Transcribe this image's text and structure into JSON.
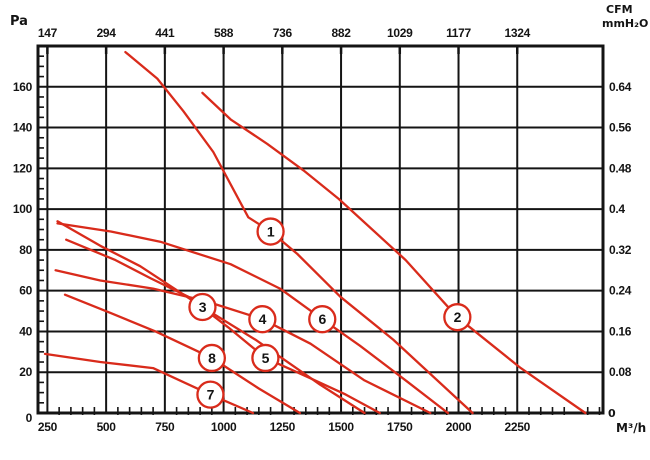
{
  "chart_data": {
    "type": "line",
    "title": "",
    "description": "Fan pressure vs airflow performance curves, 8 numbered curves",
    "colors": {
      "curve": "#d92b1b",
      "grid": "#141414",
      "text": "#141414",
      "background": "#ffffff"
    },
    "axes": {
      "bottom": {
        "unit_label": "M³/h",
        "ticks": [
          250,
          500,
          750,
          1000,
          1250,
          1500,
          1750,
          2000,
          2250
        ],
        "range": [
          210,
          2615
        ],
        "minor_step": 50,
        "grid": true
      },
      "top": {
        "unit_label": "CFM",
        "ticks": [
          147,
          294,
          441,
          588,
          736,
          882,
          1029,
          1177,
          1324
        ]
      },
      "left": {
        "unit_label": "Pa",
        "ticks": [
          0,
          20,
          40,
          60,
          80,
          100,
          120,
          140,
          160
        ],
        "range": [
          0,
          180
        ],
        "minor_step": 5,
        "grid": true
      },
      "right": {
        "unit_label": "mmH₂O",
        "zero_label": "0",
        "tick_labels": [
          "0.08",
          "0.16",
          "0.24",
          "0.32",
          "0.4",
          "0.48",
          "0.56",
          "0.64"
        ],
        "pa_per_unit": 250
      }
    },
    "series": [
      {
        "name": "1",
        "circle": {
          "q": 1200,
          "p": 89
        },
        "points": [
          [
            582,
            177
          ],
          [
            718,
            164
          ],
          [
            829,
            148
          ],
          [
            956,
            128
          ],
          [
            1105,
            96
          ],
          [
            1200,
            89
          ],
          [
            1314,
            78
          ],
          [
            1497,
            57
          ],
          [
            1722,
            36
          ],
          [
            2060,
            0
          ]
        ]
      },
      {
        "name": "2",
        "circle": {
          "q": 1995,
          "p": 47
        },
        "points": [
          [
            910,
            157
          ],
          [
            1030,
            144
          ],
          [
            1186,
            132
          ],
          [
            1340,
            119
          ],
          [
            1490,
            105
          ],
          [
            1775,
            75
          ],
          [
            1995,
            47
          ],
          [
            2265,
            22
          ],
          [
            2540,
            0
          ]
        ]
      },
      {
        "name": "3",
        "circle": {
          "q": 910,
          "p": 52
        },
        "points": [
          [
            293,
            94
          ],
          [
            475,
            82
          ],
          [
            645,
            72
          ],
          [
            910,
            52
          ],
          [
            1135,
            36
          ],
          [
            1410,
            14
          ],
          [
            1600,
            0
          ]
        ]
      },
      {
        "name": "4",
        "circle": {
          "q": 1165,
          "p": 46
        },
        "points": [
          [
            285,
            70
          ],
          [
            475,
            65
          ],
          [
            700,
            61
          ],
          [
            920,
            55
          ],
          [
            1165,
            46
          ],
          [
            1370,
            34
          ],
          [
            1600,
            16
          ],
          [
            1880,
            0
          ]
        ]
      },
      {
        "name": "5",
        "circle": {
          "q": 1178,
          "p": 27
        },
        "points": [
          [
            330,
            85
          ],
          [
            540,
            75
          ],
          [
            690,
            66
          ],
          [
            850,
            57
          ],
          [
            1020,
            42
          ],
          [
            1178,
            27
          ],
          [
            1370,
            17
          ],
          [
            1520,
            9
          ],
          [
            1665,
            0
          ]
        ]
      },
      {
        "name": "6",
        "circle": {
          "q": 1420,
          "p": 46
        },
        "points": [
          [
            293,
            93
          ],
          [
            520,
            89
          ],
          [
            730,
            84
          ],
          [
            1030,
            73
          ],
          [
            1240,
            61
          ],
          [
            1420,
            46
          ],
          [
            1580,
            33
          ],
          [
            1775,
            16
          ],
          [
            1955,
            0
          ]
        ]
      },
      {
        "name": "7",
        "circle": {
          "q": 944,
          "p": 9
        },
        "points": [
          [
            240,
            29
          ],
          [
            475,
            25
          ],
          [
            700,
            22
          ],
          [
            944,
            9
          ],
          [
            1125,
            0
          ]
        ]
      },
      {
        "name": "8",
        "circle": {
          "q": 950,
          "p": 27
        },
        "points": [
          [
            325,
            58
          ],
          [
            520,
            49
          ],
          [
            710,
            40
          ],
          [
            950,
            27
          ],
          [
            1150,
            12
          ],
          [
            1325,
            0
          ]
        ]
      }
    ]
  }
}
